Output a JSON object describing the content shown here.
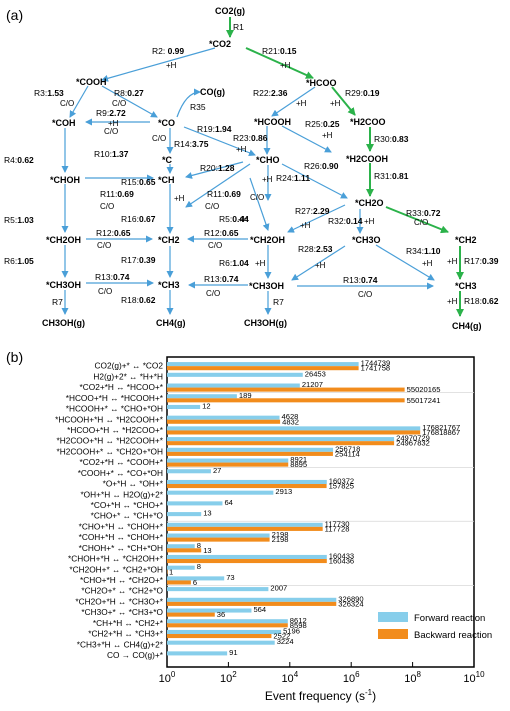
{
  "panel_a": {
    "label": "(a)",
    "colors": {
      "blue": "#4a9fd8",
      "green": "#2bb24a"
    },
    "species": {
      "co2g": "CO2(g)",
      "co2": "*CO2",
      "cooh": "*COOH",
      "hcoo": "*HCOO",
      "cog": "CO(g)",
      "coh": "*COH",
      "co": "*CO",
      "hcooh": "*HCOOH",
      "h2coo": "*H2COO",
      "c": "*C",
      "cho": "*CHO",
      "h2cooh": "*H2COOH",
      "choh": "*CHOH",
      "ch": "*CH",
      "ch2o": "*CH2O",
      "ch2oh_l": "*CH2OH",
      "ch2_l": "*CH2",
      "ch2oh_m": "*CH2OH",
      "ch3o": "*CH3O",
      "ch2_r": "*CH2",
      "ch3oh_l": "*CH3OH",
      "ch3_l": "*CH3",
      "ch3oh_m": "*CH3OH",
      "ch3_r": "*CH3",
      "ch3ohg_l": "CH3OH(g)",
      "ch4g_l": "CH4(g)",
      "ch3ohg_m": "CH3OH(g)",
      "ch4g_r": "CH4(g)"
    },
    "reactions": {
      "r1": {
        "name": "R1",
        "val": ""
      },
      "r2": {
        "name": "R2: ",
        "val": "0.99"
      },
      "r21": {
        "name": "R21:",
        "val": "0.15"
      },
      "r3": {
        "name": "R3:",
        "val": "1.53"
      },
      "r8": {
        "name": "R8:",
        "val": "0.27"
      },
      "r22": {
        "name": "R22:",
        "val": "2.36"
      },
      "r29": {
        "name": "R29:",
        "val": "0.19"
      },
      "r35": {
        "name": "R35",
        "val": ""
      },
      "r9": {
        "name": "R9:",
        "val": "2.72"
      },
      "r4": {
        "name": "R4:",
        "val": "0.62"
      },
      "r10": {
        "name": "R10:",
        "val": "1.37"
      },
      "r14": {
        "name": "R14:",
        "val": "3.75"
      },
      "r19": {
        "name": "R19:",
        "val": "1.94"
      },
      "r23": {
        "name": "R23:",
        "val": "0.86"
      },
      "r25": {
        "name": "R25:",
        "val": "0.25"
      },
      "r30": {
        "name": "R30:",
        "val": "0.83"
      },
      "r20": {
        "name": "R20:",
        "val": "1.28"
      },
      "r26": {
        "name": "R26:",
        "val": "0.90"
      },
      "r31": {
        "name": "R31:",
        "val": "0.81"
      },
      "r15": {
        "name": "R15:",
        "val": "0.65"
      },
      "r24": {
        "name": "R24:",
        "val": "1.11"
      },
      "r11a": {
        "name": "R11:",
        "val": "0.69"
      },
      "r11b": {
        "name": "R11:",
        "val": "0.69"
      },
      "r27": {
        "name": "R27:",
        "val": "2.29"
      },
      "r33": {
        "name": "R33:",
        "val": "0.72"
      },
      "r32": {
        "name": "R32:",
        "val": "0.14"
      },
      "r5a": {
        "name": "R5:",
        "val": "1.03"
      },
      "r16": {
        "name": "R16:",
        "val": "0.67"
      },
      "r5b": {
        "name": "R5:",
        "val": "0.44"
      },
      "r12a": {
        "name": "R12:",
        "val": "0.65"
      },
      "r12b": {
        "name": "R12:",
        "val": "0.65"
      },
      "r28": {
        "name": "R28:",
        "val": "2.53"
      },
      "r34": {
        "name": "R34:",
        "val": "1.10"
      },
      "r6a": {
        "name": "R6:",
        "val": "1.05"
      },
      "r17a": {
        "name": "R17:",
        "val": "0.39"
      },
      "r6b": {
        "name": "R6:",
        "val": "1.04"
      },
      "r17b": {
        "name": "R17:",
        "val": "0.39"
      },
      "r13a": {
        "name": "R13:",
        "val": "0.74"
      },
      "r13b": {
        "name": "R13:",
        "val": "0.74"
      },
      "r13c": {
        "name": "R13:",
        "val": "0.74"
      },
      "r18a": {
        "name": "R18:",
        "val": "0.62"
      },
      "r18b": {
        "name": "R18:",
        "val": "0.62"
      },
      "r7a": {
        "name": "R7",
        "val": ""
      },
      "r7b": {
        "name": "R7",
        "val": ""
      }
    },
    "conditions": {
      "h": "+H",
      "co": "C/O"
    }
  },
  "panel_b": {
    "label": "(b)",
    "chart_data": {
      "type": "bar",
      "orientation": "horizontal",
      "xscale": "log",
      "xlim": [
        1,
        10000000000
      ],
      "xticks": [
        "10^0",
        "10^2",
        "10^4",
        "10^6",
        "10^8",
        "10^10"
      ],
      "xlabel": "Event frequency (s^-1)",
      "categories": [
        "CO2(g)+* ↔ *CO2",
        "H2(g)+2* ↔ *H+*H",
        "*CO2+*H ↔ *HCOO+*",
        "*HCOO+*H ↔ *HCOOH+*",
        "*HCOOH+* ↔ *CHO+*OH",
        "*HCOOH+*H ↔ *H2COOH+*",
        "*HCOO+*H ↔ *H2COO+*",
        "*H2COO+*H ↔ *H2COOH+*",
        "*H2COOH+* ↔ *CH2O+*OH",
        "*CO2+*H ↔ *COOH+*",
        "*COOH+* ↔ *CO+*OH",
        "*O+*H ↔ *OH+*",
        "*OH+*H ↔ H2O(g)+2*",
        "*CO+*H ↔ *CHO+*",
        "*CHO+* ↔ *CH+*O",
        "*CHO+*H ↔ *CHOH+*",
        "*COH+*H ↔ *CHOH+*",
        "*CHOH+* ↔ *CH+*OH",
        "*CHOH+*H ↔ *CH2OH+*",
        "*CH2OH+* ↔ *CH2+*OH",
        "*CHO+*H ↔ *CH2O+*",
        "*CH2O+* ↔ *CH2+*O",
        "*CH2O+*H ↔ *CH3O+*",
        "*CH3O+* ↔ *CH3+*O",
        "*CH+*H ↔ *CH2+*",
        "*CH2+*H ↔ *CH3+*",
        "*CH3+*H ↔ CH4(g)+2*",
        "CO → CO(g)+*"
      ],
      "series": [
        {
          "name": "Forward reaction",
          "color": "#87ceeb",
          "values": [
            1744739,
            26453,
            21207,
            189,
            12,
            4628,
            176821767,
            24970729,
            256718,
            8921,
            27,
            160372,
            2913,
            64,
            13,
            117730,
            2198,
            8,
            160433,
            8,
            73,
            2007,
            326890,
            564,
            8612,
            5196,
            3224,
            91
          ]
        },
        {
          "name": "Backward reaction",
          "color": "#f28c1c",
          "values": [
            1741758,
            null,
            55020165,
            55017241,
            null,
            4832,
            176818867,
            24967832,
            254114,
            8895,
            null,
            157825,
            null,
            null,
            null,
            117728,
            2198,
            13,
            160436,
            1,
            6,
            null,
            326324,
            36,
            8598,
            2522,
            null,
            null
          ]
        }
      ],
      "labels": {
        "forward": [
          "1744739",
          "26453",
          "21207",
          "189",
          "12",
          "4628",
          "176821767",
          "24970729",
          "256718",
          "8921",
          "27",
          "160372",
          "2913",
          "64",
          "13",
          "117730",
          "2198",
          "8",
          "160433",
          "8",
          "73",
          "2007",
          "326890",
          "564",
          "8612",
          "5196",
          "3224",
          "91"
        ],
        "backward": [
          "1741758",
          "",
          "55020165",
          "55017241",
          "",
          "4832",
          "176818867",
          "24967832",
          "254114",
          "8895",
          "",
          "157825",
          "",
          "",
          "",
          "117728",
          "2198",
          "13",
          "160436",
          "1",
          "6",
          "",
          "326324",
          "36",
          "8598",
          "2522",
          "",
          ""
        ]
      },
      "legend": "bottom-right"
    }
  }
}
